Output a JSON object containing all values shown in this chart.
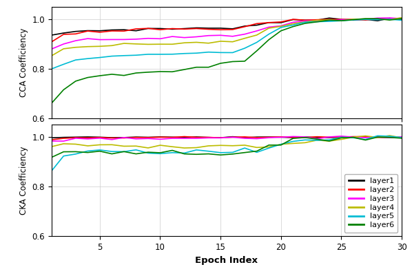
{
  "xlabel": "Epoch Index",
  "ylabel_top": "CCA Coefficiency",
  "ylabel_bottom": "CKA Coefficiency",
  "xlim": [
    1,
    30
  ],
  "ylim": [
    0.6,
    1.05
  ],
  "xticks": [
    5,
    10,
    15,
    20,
    25,
    30
  ],
  "yticks": [
    0.6,
    0.8,
    1.0
  ],
  "colors": [
    "#000000",
    "#ff0000",
    "#ff00ff",
    "#bcbc00",
    "#00bcd4",
    "#008000"
  ],
  "legend_labels": [
    "layer1",
    "layer2",
    "layer3",
    "layer4",
    "layer5",
    "layer6"
  ],
  "epochs": 30,
  "background_color": "#ffffff",
  "cca_data": {
    "layer1": [
      0.93,
      0.945,
      0.95,
      0.952,
      0.955,
      0.956,
      0.957,
      0.958,
      0.959,
      0.96,
      0.961,
      0.962,
      0.963,
      0.964,
      0.964,
      0.965,
      0.97,
      0.975,
      0.985,
      0.99,
      0.993,
      0.995,
      0.997,
      0.998,
      0.999,
      1.0,
      1.0,
      1.0,
      1.0,
      1.0
    ],
    "layer2": [
      0.91,
      0.935,
      0.945,
      0.95,
      0.953,
      0.954,
      0.955,
      0.956,
      0.957,
      0.958,
      0.959,
      0.96,
      0.96,
      0.961,
      0.962,
      0.963,
      0.968,
      0.975,
      0.985,
      0.99,
      0.993,
      0.995,
      0.997,
      0.998,
      0.999,
      1.0,
      1.0,
      1.0,
      1.0,
      1.0
    ],
    "layer3": [
      0.88,
      0.905,
      0.913,
      0.916,
      0.918,
      0.92,
      0.921,
      0.922,
      0.923,
      0.924,
      0.925,
      0.926,
      0.928,
      0.929,
      0.93,
      0.931,
      0.938,
      0.95,
      0.968,
      0.978,
      0.985,
      0.99,
      0.993,
      0.996,
      0.998,
      0.999,
      1.0,
      1.0,
      1.0,
      1.0
    ],
    "layer4": [
      0.85,
      0.878,
      0.886,
      0.889,
      0.892,
      0.893,
      0.895,
      0.897,
      0.899,
      0.9,
      0.901,
      0.903,
      0.905,
      0.907,
      0.909,
      0.91,
      0.918,
      0.935,
      0.958,
      0.972,
      0.982,
      0.988,
      0.992,
      0.995,
      0.997,
      0.999,
      1.0,
      1.0,
      1.0,
      1.0
    ],
    "layer5": [
      0.8,
      0.82,
      0.833,
      0.84,
      0.845,
      0.848,
      0.851,
      0.853,
      0.855,
      0.857,
      0.86,
      0.862,
      0.864,
      0.866,
      0.868,
      0.87,
      0.882,
      0.91,
      0.945,
      0.965,
      0.978,
      0.986,
      0.991,
      0.994,
      0.997,
      0.998,
      0.999,
      1.0,
      1.0,
      1.0
    ],
    "layer6": [
      0.66,
      0.72,
      0.75,
      0.762,
      0.768,
      0.772,
      0.777,
      0.78,
      0.782,
      0.785,
      0.79,
      0.795,
      0.8,
      0.81,
      0.82,
      0.825,
      0.832,
      0.87,
      0.92,
      0.955,
      0.972,
      0.982,
      0.989,
      0.993,
      0.996,
      0.998,
      0.999,
      1.0,
      1.0,
      1.0
    ]
  },
  "cka_data": {
    "layer1": [
      0.998,
      0.999,
      1.0,
      1.0,
      1.0,
      1.0,
      1.0,
      1.0,
      1.0,
      1.0,
      1.0,
      1.0,
      1.0,
      1.0,
      1.0,
      1.0,
      1.0,
      1.0,
      1.0,
      1.0,
      1.0,
      1.0,
      1.0,
      1.0,
      1.0,
      1.0,
      1.0,
      1.0,
      1.0,
      1.0
    ],
    "layer2": [
      0.992,
      0.996,
      0.997,
      0.998,
      0.998,
      0.998,
      0.998,
      0.999,
      0.999,
      0.999,
      0.999,
      0.999,
      1.0,
      1.0,
      1.0,
      1.0,
      1.0,
      1.0,
      1.0,
      1.0,
      1.0,
      1.0,
      1.0,
      1.0,
      1.0,
      1.0,
      1.0,
      1.0,
      1.0,
      1.0
    ],
    "layer3": [
      0.985,
      0.99,
      0.992,
      0.993,
      0.994,
      0.994,
      0.995,
      0.995,
      0.995,
      0.996,
      0.996,
      0.996,
      0.996,
      0.996,
      0.997,
      0.997,
      0.997,
      0.997,
      0.998,
      0.998,
      0.999,
      0.999,
      0.999,
      1.0,
      1.0,
      1.0,
      1.0,
      1.0,
      1.0,
      1.0
    ],
    "layer4": [
      0.962,
      0.968,
      0.97,
      0.968,
      0.967,
      0.966,
      0.966,
      0.966,
      0.966,
      0.964,
      0.964,
      0.965,
      0.965,
      0.966,
      0.964,
      0.966,
      0.966,
      0.963,
      0.966,
      0.968,
      0.973,
      0.978,
      0.983,
      0.988,
      0.993,
      0.996,
      0.998,
      0.999,
      1.0,
      1.0
    ],
    "layer5": [
      0.862,
      0.925,
      0.94,
      0.943,
      0.944,
      0.943,
      0.942,
      0.942,
      0.942,
      0.941,
      0.941,
      0.942,
      0.942,
      0.942,
      0.942,
      0.942,
      0.942,
      0.942,
      0.96,
      0.97,
      0.98,
      0.988,
      0.992,
      0.995,
      0.997,
      0.998,
      0.999,
      1.0,
      1.0,
      1.0
    ],
    "layer6": [
      0.92,
      0.94,
      0.945,
      0.945,
      0.942,
      0.94,
      0.94,
      0.94,
      0.94,
      0.938,
      0.938,
      0.938,
      0.938,
      0.936,
      0.934,
      0.935,
      0.936,
      0.94,
      0.96,
      0.972,
      0.982,
      0.989,
      0.993,
      0.996,
      0.998,
      0.999,
      1.0,
      1.0,
      1.0,
      1.0
    ]
  }
}
